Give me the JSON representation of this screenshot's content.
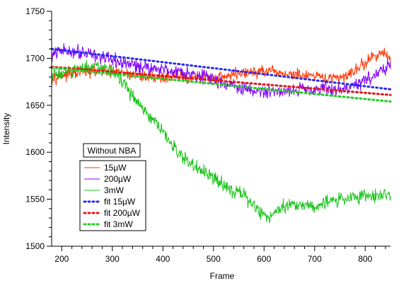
{
  "chart_data": {
    "type": "line",
    "title": "",
    "xlabel": "Frame",
    "ylabel": "Intensity",
    "xlim": [
      180,
      850
    ],
    "ylim": [
      1500,
      1750
    ],
    "xticks": [
      200,
      300,
      400,
      500,
      600,
      700,
      800
    ],
    "yticks": [
      1500,
      1550,
      1600,
      1650,
      1700,
      1750
    ],
    "grid": false,
    "annotation": "Without NBA",
    "legend_position": "center-left",
    "series": [
      {
        "name": "15µW",
        "style": "noisy",
        "color": "#ff3300",
        "x": [
          180,
          200,
          250,
          300,
          350,
          400,
          450,
          500,
          550,
          600,
          650,
          700,
          750,
          800,
          830,
          850
        ],
        "values": [
          1680,
          1682,
          1686,
          1686,
          1681,
          1680,
          1679,
          1679,
          1684,
          1686,
          1683,
          1680,
          1678,
          1695,
          1707,
          1698
        ],
        "noise": 7
      },
      {
        "name": "200µW",
        "style": "noisy",
        "color": "#7f00ff",
        "x": [
          180,
          200,
          250,
          300,
          350,
          400,
          450,
          500,
          550,
          600,
          650,
          700,
          750,
          800,
          830,
          850
        ],
        "values": [
          1703,
          1708,
          1707,
          1697,
          1692,
          1688,
          1685,
          1678,
          1668,
          1664,
          1666,
          1668,
          1666,
          1676,
          1687,
          1690
        ],
        "noise": 8
      },
      {
        "name": "3mW",
        "style": "noisy",
        "color": "#19c419",
        "x": [
          180,
          200,
          250,
          300,
          320,
          340,
          360,
          400,
          420,
          440,
          460,
          500,
          540,
          560,
          580,
          600,
          610,
          630,
          660,
          700,
          750,
          800,
          850
        ],
        "values": [
          1682,
          1684,
          1690,
          1688,
          1675,
          1660,
          1645,
          1622,
          1605,
          1595,
          1585,
          1572,
          1560,
          1553,
          1544,
          1532,
          1530,
          1542,
          1545,
          1543,
          1550,
          1554,
          1555
        ],
        "noise": 8
      },
      {
        "name": "fit 15µW",
        "style": "dotted",
        "color": "#2a2af0",
        "x": [
          180,
          850
        ],
        "values": [
          1710,
          1667
        ]
      },
      {
        "name": "fit 200µW",
        "style": "dotted",
        "color": "#e01818",
        "x": [
          180,
          850
        ],
        "values": [
          1691,
          1661
        ]
      },
      {
        "name": "fit 3mW",
        "style": "dotted",
        "color": "#22cc22",
        "x": [
          180,
          850
        ],
        "values": [
          1690,
          1654
        ]
      }
    ]
  }
}
